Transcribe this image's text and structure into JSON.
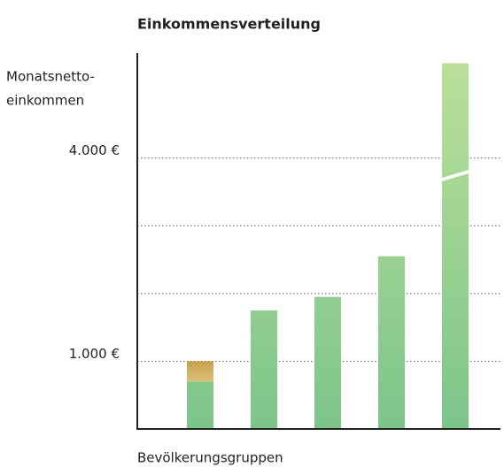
{
  "chart_data": {
    "type": "bar",
    "stacked": true,
    "title": "Einkommensverteilung",
    "ylabel": [
      "Monatsnetto-",
      "einkommen"
    ],
    "xlabel": "Bevölkerungsgruppen",
    "series": [
      {
        "color": "#84c68b",
        "values": [
          700,
          1750,
          1950,
          2550,
          5400
        ]
      },
      {
        "color": "#c9a24e",
        "values": [
          300,
          null,
          null,
          null,
          null
        ]
      }
    ],
    "ylim": [
      0,
      5550
    ],
    "yticks": [
      {
        "value": 1000,
        "label": "1.000 €"
      },
      {
        "value": 4000,
        "label": "4.000 €"
      }
    ],
    "ygrid": [
      1000,
      2000,
      3000,
      4000
    ],
    "grid": true,
    "axis_break_bar": 4
  }
}
